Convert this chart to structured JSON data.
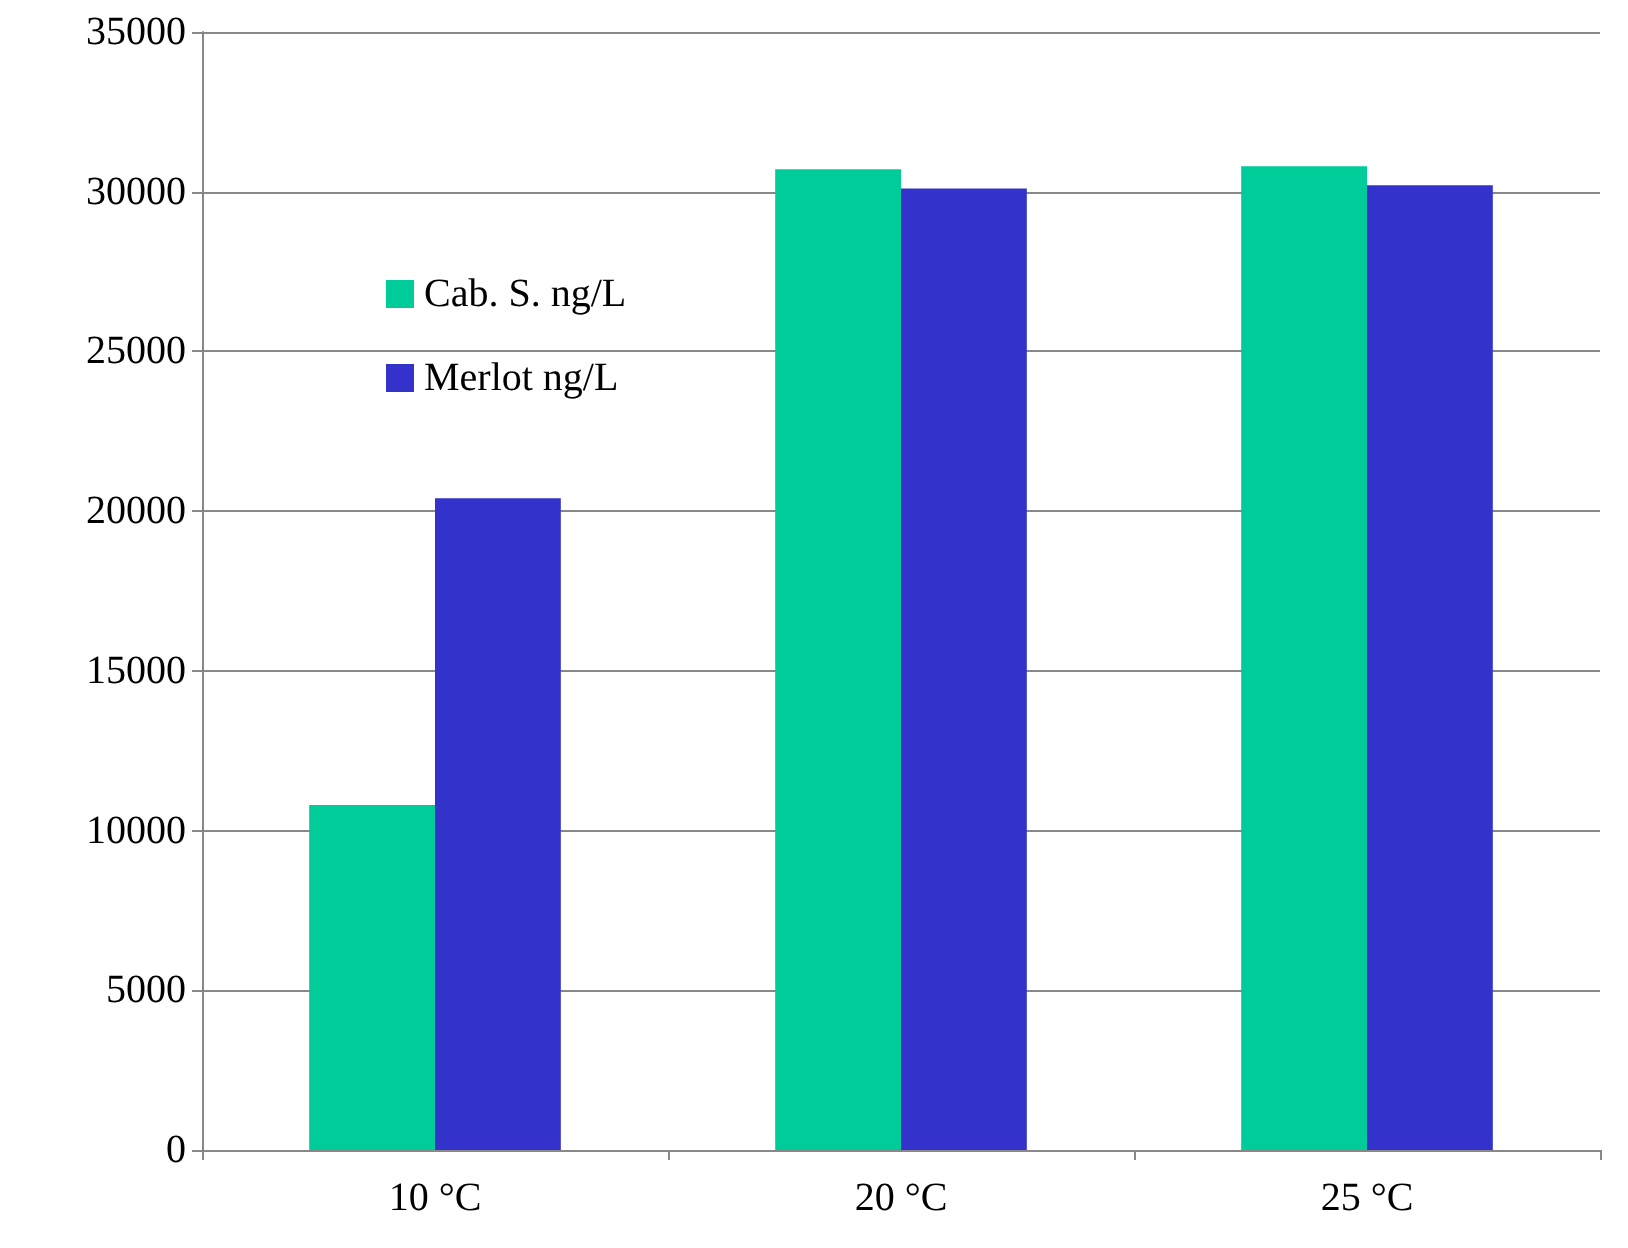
{
  "chart_data": {
    "type": "bar",
    "categories": [
      "10 °C",
      "20 °C",
      "25 °C"
    ],
    "series": [
      {
        "name": "Cab. S. ng/L",
        "color": "#00cc99",
        "values": [
          10800,
          30700,
          30800
        ]
      },
      {
        "name": "Merlot ng/L",
        "color": "#3333cc",
        "values": [
          20400,
          30100,
          30200
        ]
      }
    ],
    "ylim": [
      0,
      35000
    ],
    "yticks": [
      0,
      5000,
      10000,
      15000,
      20000,
      25000,
      30000,
      35000
    ],
    "grid": "y",
    "legend": "top left"
  }
}
